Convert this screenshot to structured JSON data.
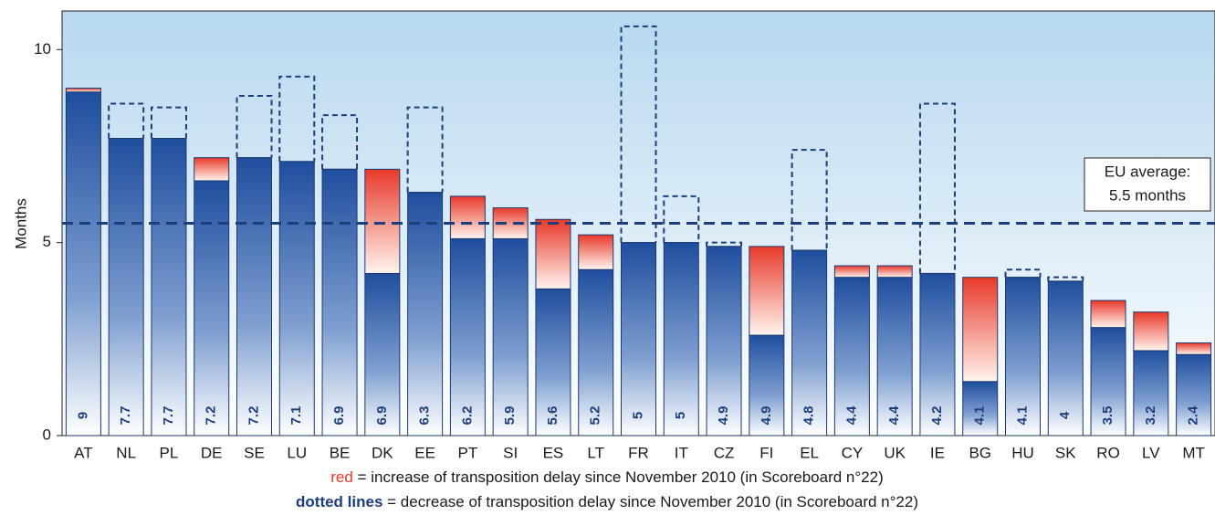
{
  "chart_data": {
    "type": "bar",
    "y_label": "Months",
    "categories": [
      "AT",
      "NL",
      "PL",
      "DE",
      "SE",
      "LU",
      "BE",
      "DK",
      "EE",
      "PT",
      "SI",
      "ES",
      "LT",
      "FR",
      "IT",
      "CZ",
      "FI",
      "EL",
      "CY",
      "UK",
      "IE",
      "BG",
      "HU",
      "SK",
      "RO",
      "LV",
      "MT"
    ],
    "values": [
      9,
      7.7,
      7.7,
      7.2,
      7.2,
      7.1,
      6.9,
      6.9,
      6.3,
      6.2,
      5.9,
      5.6,
      5.2,
      5,
      5,
      4.9,
      4.9,
      4.8,
      4.4,
      4.4,
      4.2,
      4.1,
      4.1,
      4,
      3.5,
      3.2,
      2.4
    ],
    "previous_values": [
      8.9,
      8.6,
      8.5,
      6.6,
      8.8,
      9.3,
      8.3,
      4.2,
      8.5,
      5.1,
      5.1,
      3.8,
      4.3,
      10.6,
      6.2,
      5.0,
      2.6,
      7.4,
      4.1,
      4.1,
      8.6,
      1.4,
      4.3,
      4.1,
      2.8,
      2.2,
      2.1
    ],
    "color": "#1f4e9e",
    "increase_color": "#e8392a",
    "ylim": [
      0,
      11
    ],
    "yticks": [
      0,
      5,
      10
    ],
    "average": {
      "value": 5.5,
      "label_line1": "EU average:",
      "label_line2": "5.5 months"
    },
    "notes": {
      "red_key": "red",
      "red_text": "= increase of transposition delay since November 2010 (in Scoreboard n°22)",
      "dotted_key": "dotted lines",
      "dotted_text": "= decrease of transposition delay since November 2010 (in Scoreboard n°22)"
    }
  }
}
